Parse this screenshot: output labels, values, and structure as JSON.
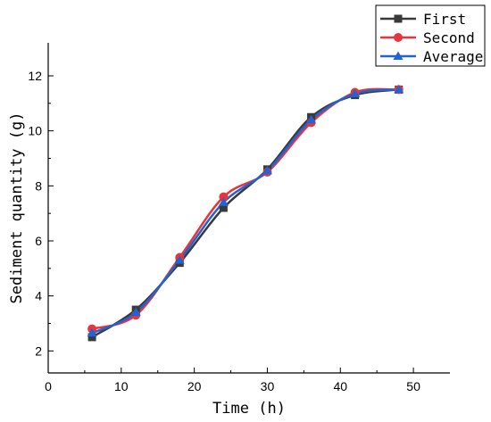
{
  "chart_data": {
    "type": "line",
    "title": "",
    "xlabel": "Time (h)",
    "ylabel": "Sediment quantity (g)",
    "xlim": [
      0,
      55
    ],
    "ylim": [
      1.2,
      13.2
    ],
    "xticks": [
      0,
      10,
      20,
      30,
      40,
      50
    ],
    "yticks": [
      2,
      4,
      6,
      8,
      10,
      12
    ],
    "grid": false,
    "legend_position": "top-right",
    "x": [
      6,
      12,
      18,
      24,
      30,
      36,
      42,
      48
    ],
    "series": [
      {
        "name": "First",
        "color": "#3a3a3a",
        "marker": "square",
        "values": [
          2.5,
          3.5,
          5.2,
          7.2,
          8.6,
          10.5,
          11.3,
          11.5
        ]
      },
      {
        "name": "Second",
        "color": "#e8343c",
        "marker": "circle",
        "values": [
          2.8,
          3.3,
          5.4,
          7.6,
          8.5,
          10.3,
          11.4,
          11.5
        ]
      },
      {
        "name": "Average",
        "color": "#1f63d6",
        "marker": "triangle",
        "values": [
          2.65,
          3.4,
          5.3,
          7.4,
          8.55,
          10.4,
          11.35,
          11.5
        ]
      }
    ]
  }
}
